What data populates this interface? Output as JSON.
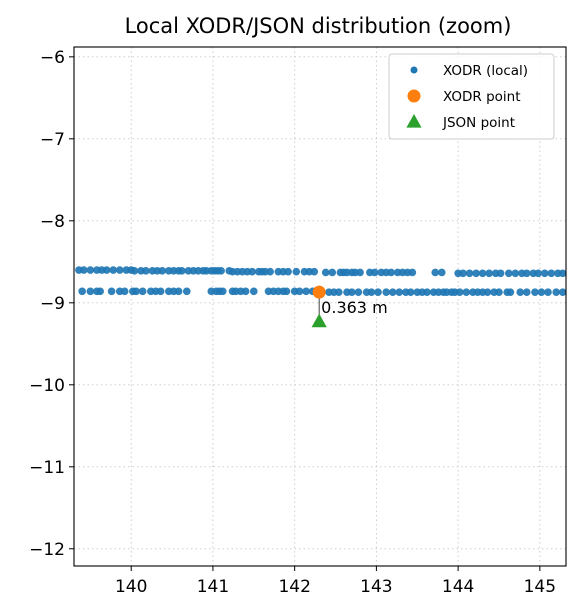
{
  "chart_data": {
    "type": "scatter",
    "title": "Local XODR/JSON distribution (zoom)",
    "xlabel": "",
    "ylabel": "",
    "xlim": [
      139.3,
      145.32
    ],
    "ylim": [
      -12.21,
      -5.88
    ],
    "xticks": [
      140,
      141,
      142,
      143,
      144,
      145
    ],
    "yticks": [
      -6,
      -7,
      -8,
      -9,
      -10,
      -11,
      -12
    ],
    "xtick_labels": [
      "140",
      "141",
      "142",
      "143",
      "144",
      "145"
    ],
    "ytick_labels": [
      "−6",
      "−7",
      "−8",
      "−9",
      "−10",
      "−11",
      "−12"
    ],
    "grid": true,
    "legend_position": "top-right",
    "series": [
      {
        "name": "XODR (local)",
        "marker": "circle-small",
        "color": "#1f77b4",
        "x": [
          139.36,
          139.42,
          139.5,
          139.58,
          139.64,
          139.7,
          139.78,
          139.86,
          139.94,
          140.0,
          140.04,
          140.12,
          140.18,
          140.26,
          140.32,
          140.38,
          140.46,
          140.52,
          140.58,
          140.62,
          140.7,
          140.76,
          140.82,
          140.88,
          140.92,
          140.98,
          141.02,
          141.06,
          141.1,
          141.2,
          141.24,
          141.3,
          141.36,
          141.42,
          141.48,
          141.56,
          141.6,
          141.64,
          141.7,
          141.8,
          141.86,
          141.92,
          142.02,
          142.12,
          142.18,
          142.24,
          142.38,
          142.46,
          142.56,
          142.6,
          142.64,
          142.7,
          142.74,
          142.8,
          142.92,
          142.98,
          143.06,
          143.12,
          143.18,
          143.26,
          143.32,
          143.38,
          143.44,
          143.72,
          143.8,
          144.0,
          144.06,
          144.14,
          144.22,
          144.3,
          144.38,
          144.46,
          144.52,
          144.62,
          144.7,
          144.78,
          144.84,
          144.92,
          144.98,
          145.06,
          145.14,
          145.22,
          145.28,
          139.4,
          139.5,
          139.58,
          139.62,
          139.76,
          139.86,
          139.92,
          140.02,
          140.06,
          140.14,
          140.24,
          140.3,
          140.36,
          140.46,
          140.52,
          140.58,
          140.68,
          140.98,
          141.04,
          141.08,
          141.12,
          141.24,
          141.28,
          141.34,
          141.4,
          141.5,
          141.68,
          141.74,
          141.8,
          141.86,
          141.9,
          142.0,
          142.06,
          142.14,
          142.22,
          142.42,
          142.48,
          142.54,
          142.64,
          142.7,
          142.78,
          142.88,
          142.94,
          143.02,
          143.12,
          143.2,
          143.28,
          143.36,
          143.42,
          143.5,
          143.56,
          143.62,
          143.7,
          143.76,
          143.82,
          143.86,
          143.92,
          143.96,
          144.02,
          144.1,
          144.18,
          144.24,
          144.3,
          144.36,
          144.44,
          144.5,
          144.6,
          144.64,
          144.76,
          144.84,
          144.94,
          145.02,
          145.1,
          145.2,
          145.28
        ],
        "y": [
          -8.6,
          -8.6,
          -8.6,
          -8.6,
          -8.6,
          -8.6,
          -8.6,
          -8.6,
          -8.6,
          -8.6,
          -8.61,
          -8.61,
          -8.61,
          -8.61,
          -8.61,
          -8.61,
          -8.61,
          -8.61,
          -8.61,
          -8.61,
          -8.61,
          -8.61,
          -8.61,
          -8.61,
          -8.61,
          -8.61,
          -8.61,
          -8.61,
          -8.61,
          -8.61,
          -8.62,
          -8.62,
          -8.62,
          -8.62,
          -8.62,
          -8.62,
          -8.62,
          -8.62,
          -8.62,
          -8.62,
          -8.62,
          -8.62,
          -8.62,
          -8.62,
          -8.62,
          -8.62,
          -8.63,
          -8.63,
          -8.63,
          -8.63,
          -8.63,
          -8.63,
          -8.63,
          -8.63,
          -8.63,
          -8.63,
          -8.63,
          -8.63,
          -8.63,
          -8.63,
          -8.63,
          -8.63,
          -8.63,
          -8.63,
          -8.63,
          -8.64,
          -8.64,
          -8.64,
          -8.64,
          -8.64,
          -8.64,
          -8.64,
          -8.64,
          -8.64,
          -8.64,
          -8.64,
          -8.64,
          -8.64,
          -8.64,
          -8.64,
          -8.64,
          -8.64,
          -8.64,
          -8.86,
          -8.86,
          -8.86,
          -8.86,
          -8.86,
          -8.86,
          -8.86,
          -8.86,
          -8.86,
          -8.86,
          -8.86,
          -8.86,
          -8.86,
          -8.86,
          -8.86,
          -8.86,
          -8.86,
          -8.86,
          -8.86,
          -8.86,
          -8.86,
          -8.86,
          -8.86,
          -8.86,
          -8.86,
          -8.86,
          -8.86,
          -8.86,
          -8.86,
          -8.86,
          -8.86,
          -8.86,
          -8.86,
          -8.86,
          -8.86,
          -8.87,
          -8.87,
          -8.87,
          -8.87,
          -8.87,
          -8.87,
          -8.87,
          -8.87,
          -8.87,
          -8.87,
          -8.87,
          -8.87,
          -8.87,
          -8.87,
          -8.87,
          -8.87,
          -8.87,
          -8.87,
          -8.87,
          -8.87,
          -8.87,
          -8.87,
          -8.87,
          -8.87,
          -8.87,
          -8.87,
          -8.87,
          -8.87,
          -8.87,
          -8.87,
          -8.87,
          -8.87,
          -8.87,
          -8.87,
          -8.87,
          -8.87,
          -8.87,
          -8.87,
          -8.87,
          -8.87
        ]
      },
      {
        "name": "XODR point",
        "marker": "circle",
        "color": "#ff7f0e",
        "x": [
          142.3
        ],
        "y": [
          -8.87
        ]
      },
      {
        "name": "JSON point",
        "marker": "triangle",
        "color": "#2ca02c",
        "x": [
          142.3
        ],
        "y": [
          -9.23
        ]
      }
    ],
    "annotation": {
      "text": "0.363 m",
      "x": 142.3,
      "y": -9.05
    }
  }
}
